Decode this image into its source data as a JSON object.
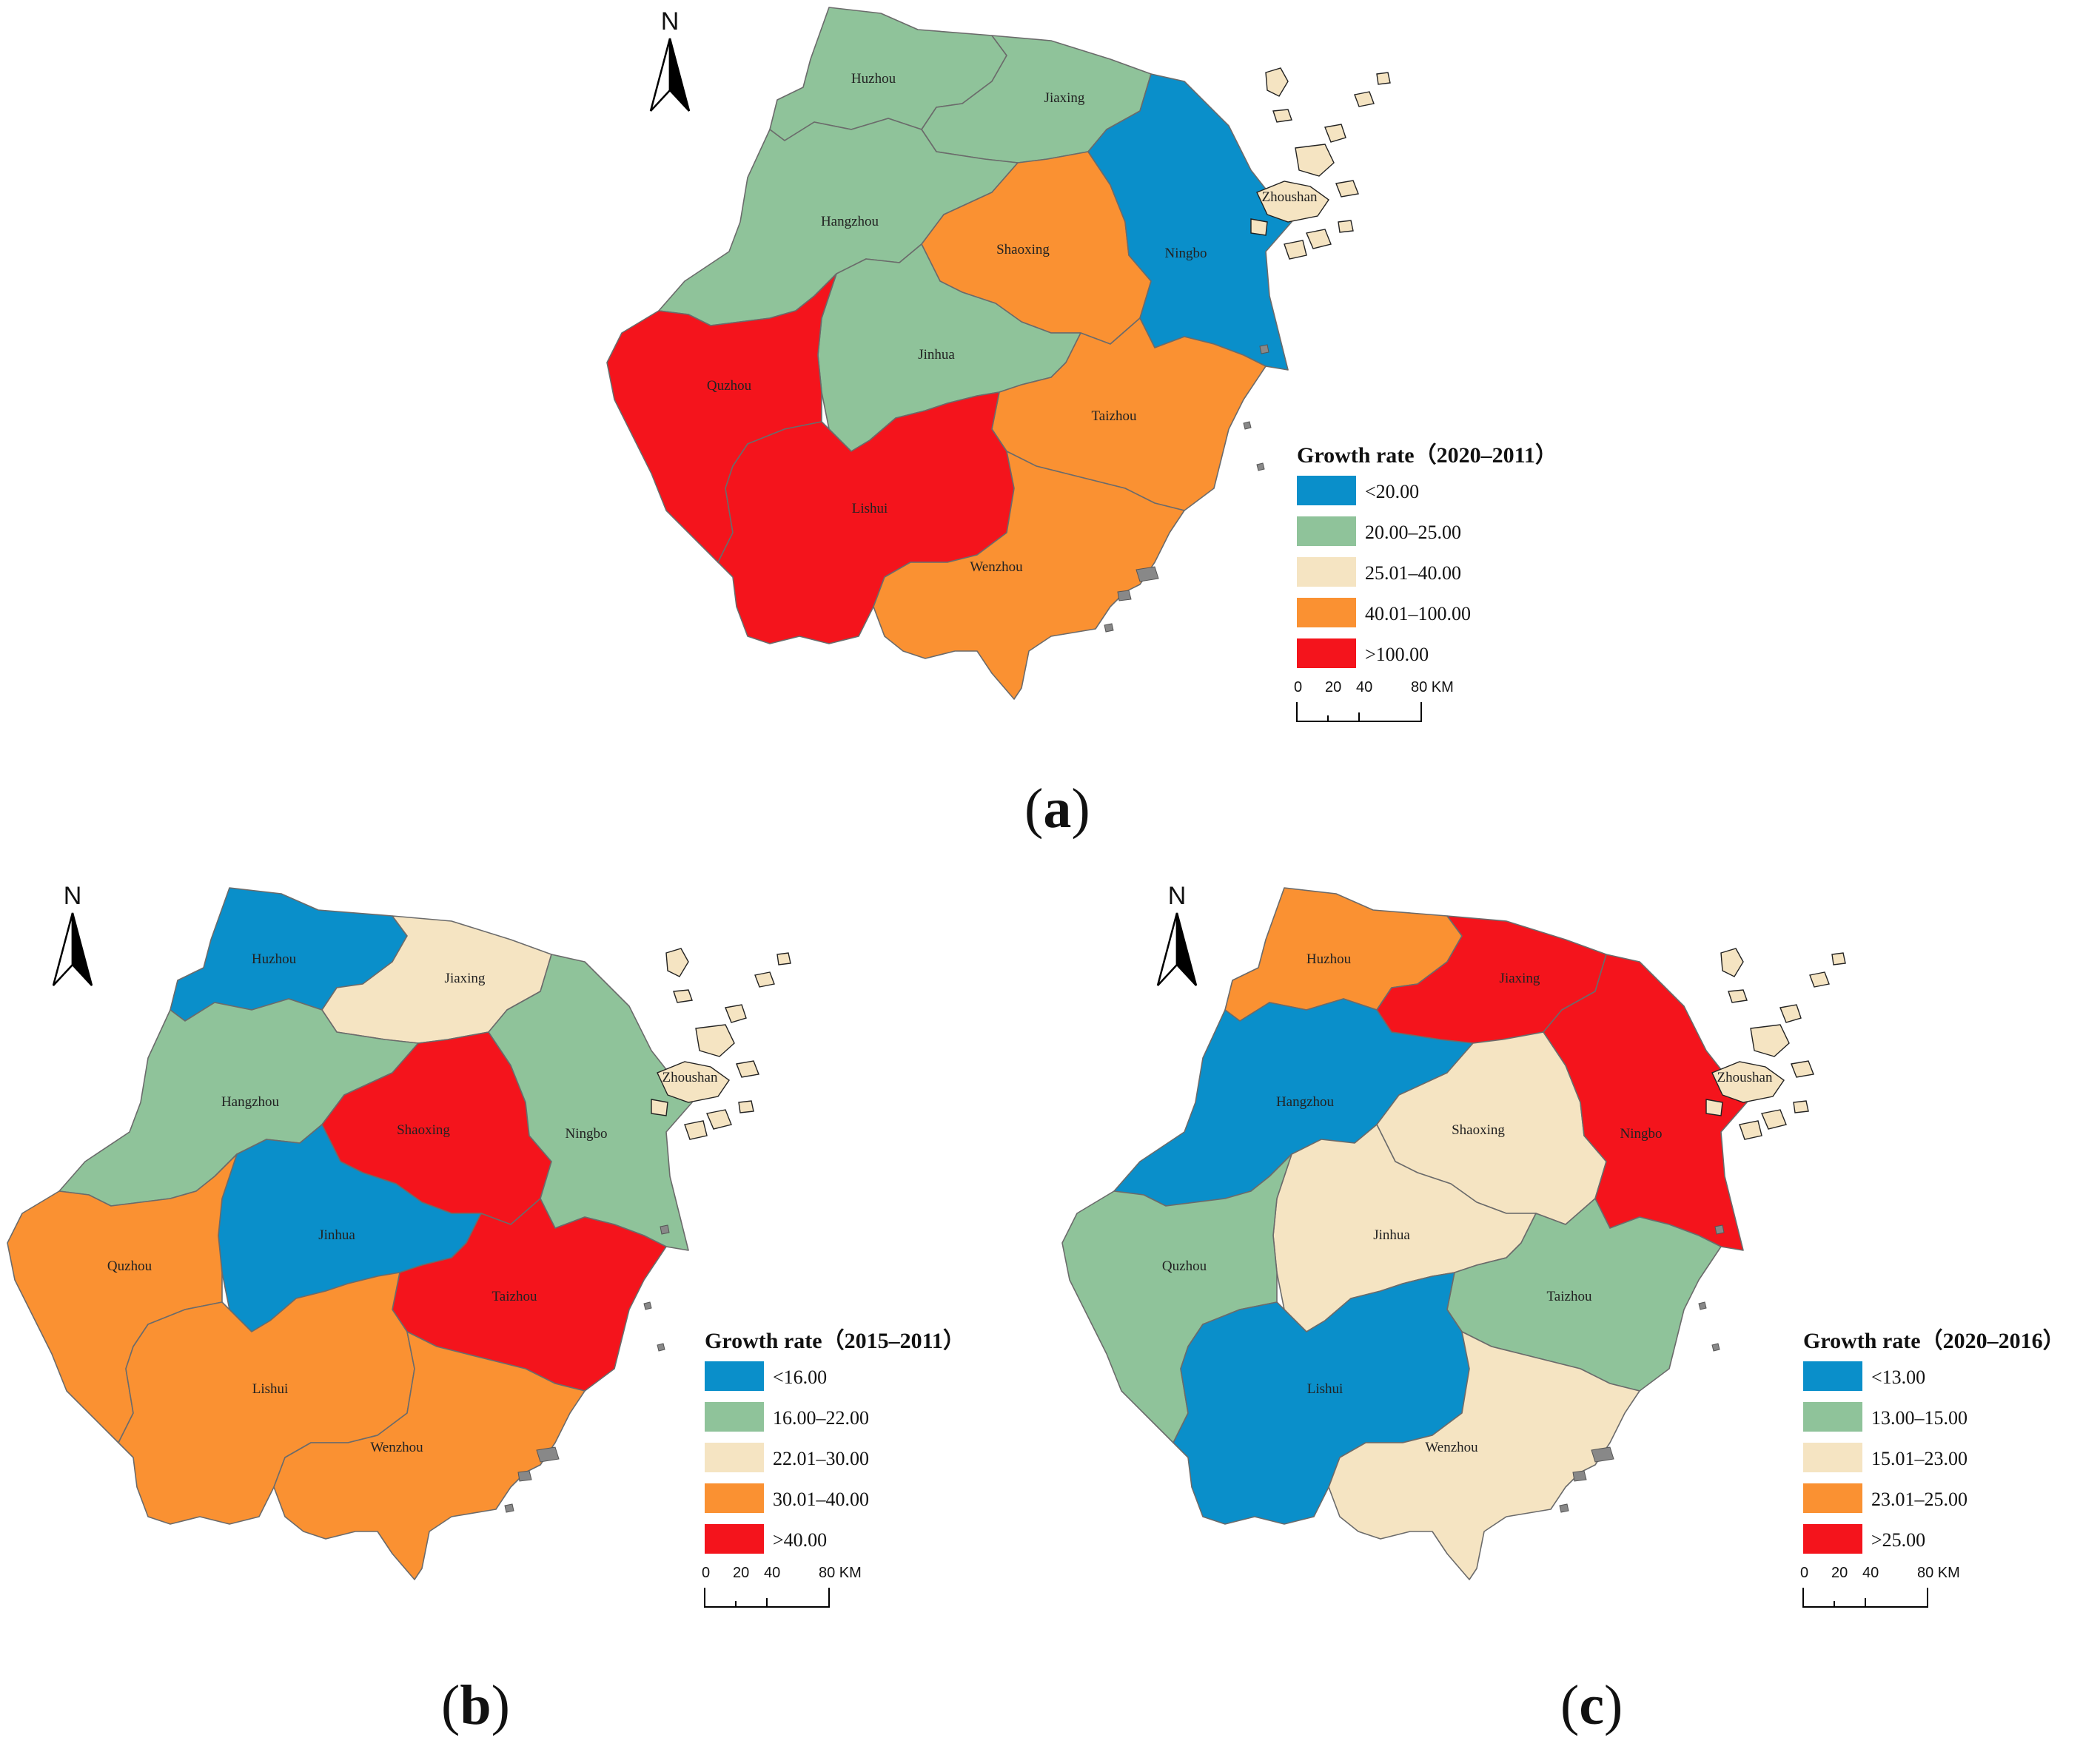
{
  "colors": {
    "blue": "#0a8fca",
    "green": "#8fc39a",
    "beige": "#f5e4c2",
    "orange": "#fa9132",
    "red": "#f4141c",
    "island": "#f3e2bd",
    "border": "#6b6b6b"
  },
  "north_arrow": {
    "label": "N",
    "icon": "north-arrow-icon"
  },
  "scale_bar": {
    "ticks": [
      "0",
      "20",
      "40",
      "80 KM"
    ]
  },
  "maps": [
    {
      "id": "a",
      "caption": "a",
      "legend_title": "Growth rate（2020–2011）",
      "classes": [
        {
          "label": "<20.00",
          "color": "#0a8fca"
        },
        {
          "label": "20.00–25.00",
          "color": "#8fc39a"
        },
        {
          "label": "25.01–40.00",
          "color": "#f5e4c2"
        },
        {
          "label": "40.01–100.00",
          "color": "#fa9132"
        },
        {
          "label": ">100.00",
          "color": "#f4141c"
        }
      ],
      "regions": [
        {
          "name": "Huzhou",
          "class": 1
        },
        {
          "name": "Jiaxing",
          "class": 1
        },
        {
          "name": "Hangzhou",
          "class": 1
        },
        {
          "name": "Shaoxing",
          "class": 3
        },
        {
          "name": "Ningbo",
          "class": 0
        },
        {
          "name": "Zhoushan",
          "class": 2
        },
        {
          "name": "Jinhua",
          "class": 1
        },
        {
          "name": "Quzhou",
          "class": 4
        },
        {
          "name": "Taizhou",
          "class": 3
        },
        {
          "name": "Lishui",
          "class": 4
        },
        {
          "name": "Wenzhou",
          "class": 3
        }
      ]
    },
    {
      "id": "b",
      "caption": "b",
      "legend_title": "Growth rate（2015–2011）",
      "classes": [
        {
          "label": "<16.00",
          "color": "#0a8fca"
        },
        {
          "label": "16.00–22.00",
          "color": "#8fc39a"
        },
        {
          "label": "22.01–30.00",
          "color": "#f5e4c2"
        },
        {
          "label": "30.01–40.00",
          "color": "#fa9132"
        },
        {
          "label": ">40.00",
          "color": "#f4141c"
        }
      ],
      "regions": [
        {
          "name": "Huzhou",
          "class": 0
        },
        {
          "name": "Jiaxing",
          "class": 2
        },
        {
          "name": "Hangzhou",
          "class": 1
        },
        {
          "name": "Shaoxing",
          "class": 4
        },
        {
          "name": "Ningbo",
          "class": 1
        },
        {
          "name": "Zhoushan",
          "class": 2
        },
        {
          "name": "Jinhua",
          "class": 0
        },
        {
          "name": "Quzhou",
          "class": 3
        },
        {
          "name": "Taizhou",
          "class": 4
        },
        {
          "name": "Lishui",
          "class": 3
        },
        {
          "name": "Wenzhou",
          "class": 3
        }
      ]
    },
    {
      "id": "c",
      "caption": "c",
      "legend_title": "Growth rate（2020–2016）",
      "classes": [
        {
          "label": "<13.00",
          "color": "#0a8fca"
        },
        {
          "label": "13.00–15.00",
          "color": "#8fc39a"
        },
        {
          "label": "15.01–23.00",
          "color": "#f5e4c2"
        },
        {
          "label": "23.01–25.00",
          "color": "#fa9132"
        },
        {
          "label": ">25.00",
          "color": "#f4141c"
        }
      ],
      "regions": [
        {
          "name": "Huzhou",
          "class": 3
        },
        {
          "name": "Jiaxing",
          "class": 4
        },
        {
          "name": "Hangzhou",
          "class": 0
        },
        {
          "name": "Shaoxing",
          "class": 2
        },
        {
          "name": "Ningbo",
          "class": 4
        },
        {
          "name": "Zhoushan",
          "class": 2
        },
        {
          "name": "Jinhua",
          "class": 2
        },
        {
          "name": "Quzhou",
          "class": 1
        },
        {
          "name": "Taizhou",
          "class": 1
        },
        {
          "name": "Lishui",
          "class": 0
        },
        {
          "name": "Wenzhou",
          "class": 2
        }
      ]
    }
  ]
}
